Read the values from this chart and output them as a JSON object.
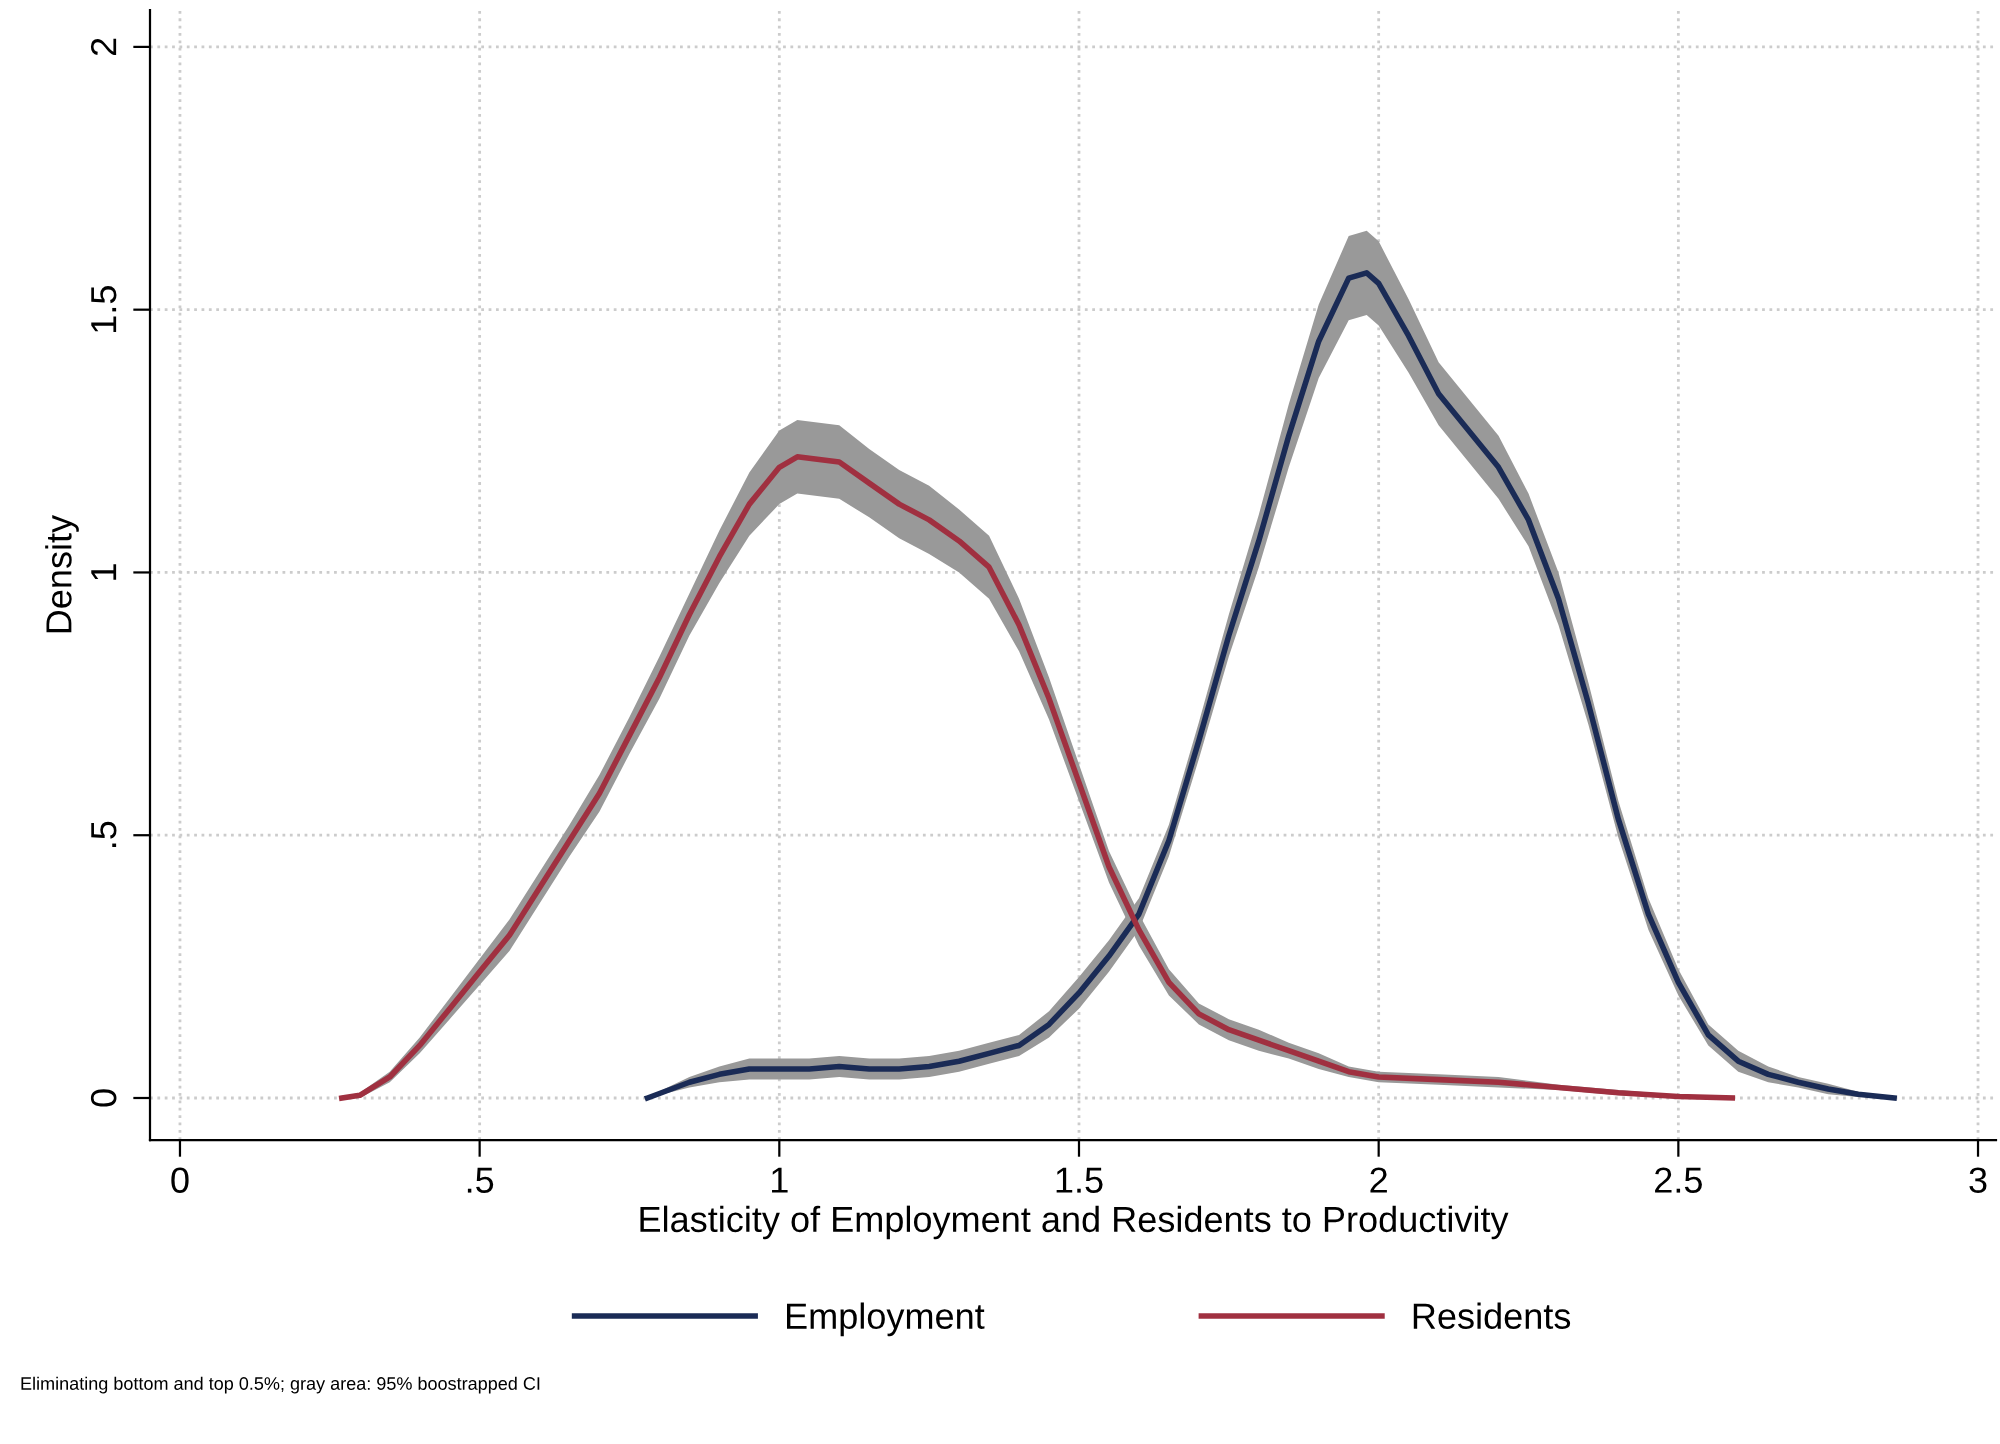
{
  "chart_data": {
    "type": "line",
    "xlabel": "Elasticity of Employment and Residents to Productivity",
    "ylabel": "Density",
    "xlim": [
      -0.05,
      3.03
    ],
    "ylim": [
      -0.08,
      2.07
    ],
    "xticks": [
      0,
      {
        "value": 0.5,
        "label": ".5"
      },
      1,
      {
        "value": 1.5,
        "label": "1.5"
      },
      2,
      {
        "value": 2.5,
        "label": "2.5"
      },
      3
    ],
    "yticks": [
      0,
      {
        "value": 0.5,
        "label": ".5"
      },
      1,
      {
        "value": 1.5,
        "label": "1.5"
      },
      2
    ],
    "grid": true,
    "legend": "bottom",
    "line_style": "solid",
    "marker": "none",
    "annotations": [
      "Eliminating bottom and top 0.5%; gray area: 95% boostrapped CI"
    ],
    "series": [
      {
        "name": "Employment",
        "color": "#1a2b56",
        "x": [
          0.78,
          0.85,
          0.9,
          0.95,
          1.0,
          1.05,
          1.1,
          1.15,
          1.2,
          1.25,
          1.3,
          1.35,
          1.4,
          1.45,
          1.5,
          1.55,
          1.6,
          1.65,
          1.7,
          1.75,
          1.8,
          1.85,
          1.9,
          1.95,
          1.98,
          2.0,
          2.05,
          2.1,
          2.15,
          2.2,
          2.25,
          2.3,
          2.35,
          2.4,
          2.45,
          2.5,
          2.55,
          2.6,
          2.65,
          2.7,
          2.75,
          2.8,
          2.86
        ],
        "values": [
          0,
          0.03,
          0.045,
          0.055,
          0.055,
          0.055,
          0.06,
          0.055,
          0.055,
          0.06,
          0.07,
          0.085,
          0.1,
          0.14,
          0.2,
          0.27,
          0.35,
          0.49,
          0.68,
          0.88,
          1.06,
          1.26,
          1.44,
          1.56,
          1.57,
          1.55,
          1.45,
          1.34,
          1.27,
          1.2,
          1.1,
          0.95,
          0.75,
          0.53,
          0.35,
          0.22,
          0.12,
          0.07,
          0.045,
          0.03,
          0.017,
          0.007,
          0
        ],
        "lower": [
          0,
          0.02,
          0.03,
          0.035,
          0.035,
          0.035,
          0.04,
          0.035,
          0.035,
          0.04,
          0.05,
          0.065,
          0.08,
          0.115,
          0.17,
          0.24,
          0.32,
          0.46,
          0.645,
          0.84,
          1.01,
          1.2,
          1.37,
          1.48,
          1.49,
          1.47,
          1.38,
          1.28,
          1.21,
          1.14,
          1.05,
          0.9,
          0.71,
          0.495,
          0.32,
          0.195,
          0.1,
          0.05,
          0.03,
          0.02,
          0.007,
          0.002,
          0
        ],
        "upper": [
          0.002,
          0.04,
          0.06,
          0.075,
          0.075,
          0.075,
          0.08,
          0.075,
          0.075,
          0.08,
          0.09,
          0.105,
          0.12,
          0.165,
          0.23,
          0.3,
          0.38,
          0.52,
          0.715,
          0.92,
          1.11,
          1.32,
          1.51,
          1.64,
          1.65,
          1.63,
          1.52,
          1.4,
          1.33,
          1.26,
          1.15,
          1.0,
          0.79,
          0.565,
          0.38,
          0.245,
          0.14,
          0.09,
          0.06,
          0.04,
          0.027,
          0.012,
          0.002
        ]
      },
      {
        "name": "Residents",
        "color": "#a03040",
        "x": [
          0.27,
          0.3,
          0.35,
          0.4,
          0.45,
          0.5,
          0.55,
          0.6,
          0.65,
          0.7,
          0.75,
          0.8,
          0.85,
          0.9,
          0.95,
          1.0,
          1.03,
          1.1,
          1.15,
          1.2,
          1.25,
          1.3,
          1.35,
          1.4,
          1.45,
          1.5,
          1.55,
          1.6,
          1.65,
          1.7,
          1.75,
          1.8,
          1.85,
          1.9,
          1.95,
          2.0,
          2.1,
          2.2,
          2.3,
          2.4,
          2.5,
          2.59
        ],
        "values": [
          0,
          0.005,
          0.04,
          0.1,
          0.17,
          0.24,
          0.31,
          0.4,
          0.49,
          0.58,
          0.69,
          0.8,
          0.92,
          1.03,
          1.13,
          1.2,
          1.22,
          1.21,
          1.17,
          1.13,
          1.1,
          1.06,
          1.01,
          0.9,
          0.76,
          0.6,
          0.44,
          0.32,
          0.22,
          0.16,
          0.13,
          0.11,
          0.09,
          0.07,
          0.05,
          0.04,
          0.035,
          0.03,
          0.02,
          0.01,
          0.003,
          0
        ],
        "lower": [
          0,
          0,
          0.03,
          0.085,
          0.15,
          0.215,
          0.28,
          0.37,
          0.46,
          0.545,
          0.655,
          0.76,
          0.88,
          0.98,
          1.07,
          1.13,
          1.15,
          1.14,
          1.105,
          1.065,
          1.035,
          1.0,
          0.95,
          0.85,
          0.72,
          0.565,
          0.41,
          0.29,
          0.195,
          0.14,
          0.11,
          0.09,
          0.075,
          0.055,
          0.04,
          0.03,
          0.025,
          0.02,
          0.015,
          0.005,
          0,
          0
        ],
        "upper": [
          0.003,
          0.01,
          0.05,
          0.115,
          0.19,
          0.265,
          0.34,
          0.43,
          0.52,
          0.615,
          0.725,
          0.84,
          0.96,
          1.08,
          1.19,
          1.27,
          1.29,
          1.28,
          1.235,
          1.195,
          1.165,
          1.12,
          1.07,
          0.95,
          0.8,
          0.635,
          0.47,
          0.35,
          0.245,
          0.18,
          0.15,
          0.13,
          0.105,
          0.085,
          0.06,
          0.05,
          0.045,
          0.04,
          0.025,
          0.015,
          0.006,
          0.001
        ]
      }
    ]
  }
}
